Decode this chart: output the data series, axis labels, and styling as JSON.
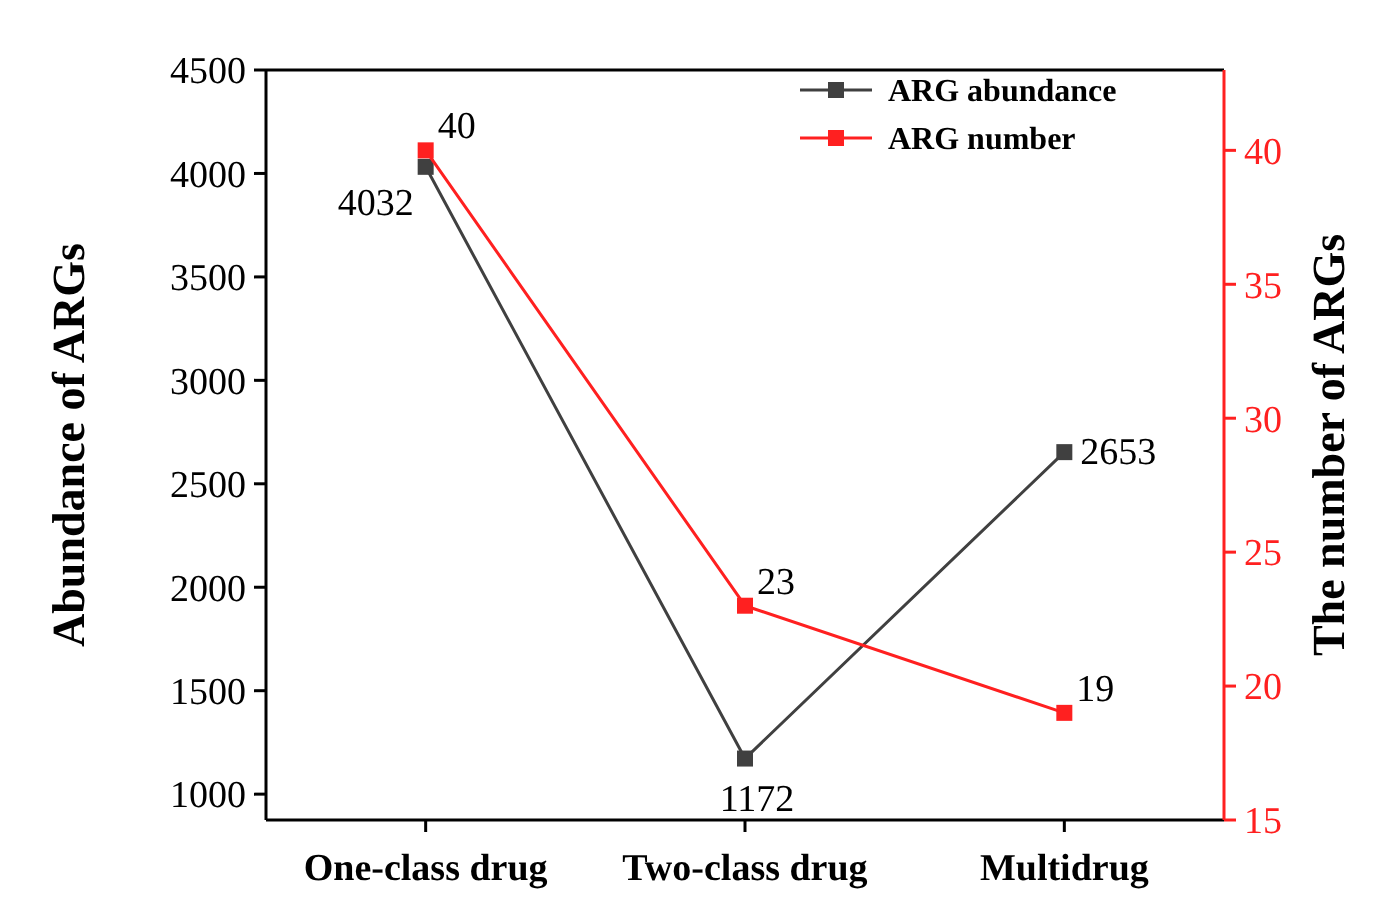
{
  "chart_data": {
    "type": "line",
    "categories": [
      "One-class drug",
      "Two-class drug",
      "Multidrug"
    ],
    "series": [
      {
        "name": "ARG abundance",
        "color": "#404040",
        "values": [
          4032,
          1172,
          2653
        ]
      },
      {
        "name": "ARG number",
        "color": "#ff2020",
        "values": [
          40,
          23,
          19
        ],
        "axis": "y2"
      }
    ],
    "ylabel": "Abundance of ARGs",
    "y2label": "The number of ARGs",
    "ylim": [
      875,
      4500
    ],
    "yticks": [
      1000,
      1500,
      2000,
      2500,
      3000,
      3500,
      4000,
      4500
    ],
    "y2lim": [
      15,
      43
    ],
    "y2ticks": [
      15,
      20,
      25,
      30,
      35,
      40
    ],
    "marker": "square",
    "line_style": "solid",
    "legend": "top right",
    "data_labels": true,
    "grid": false
  }
}
